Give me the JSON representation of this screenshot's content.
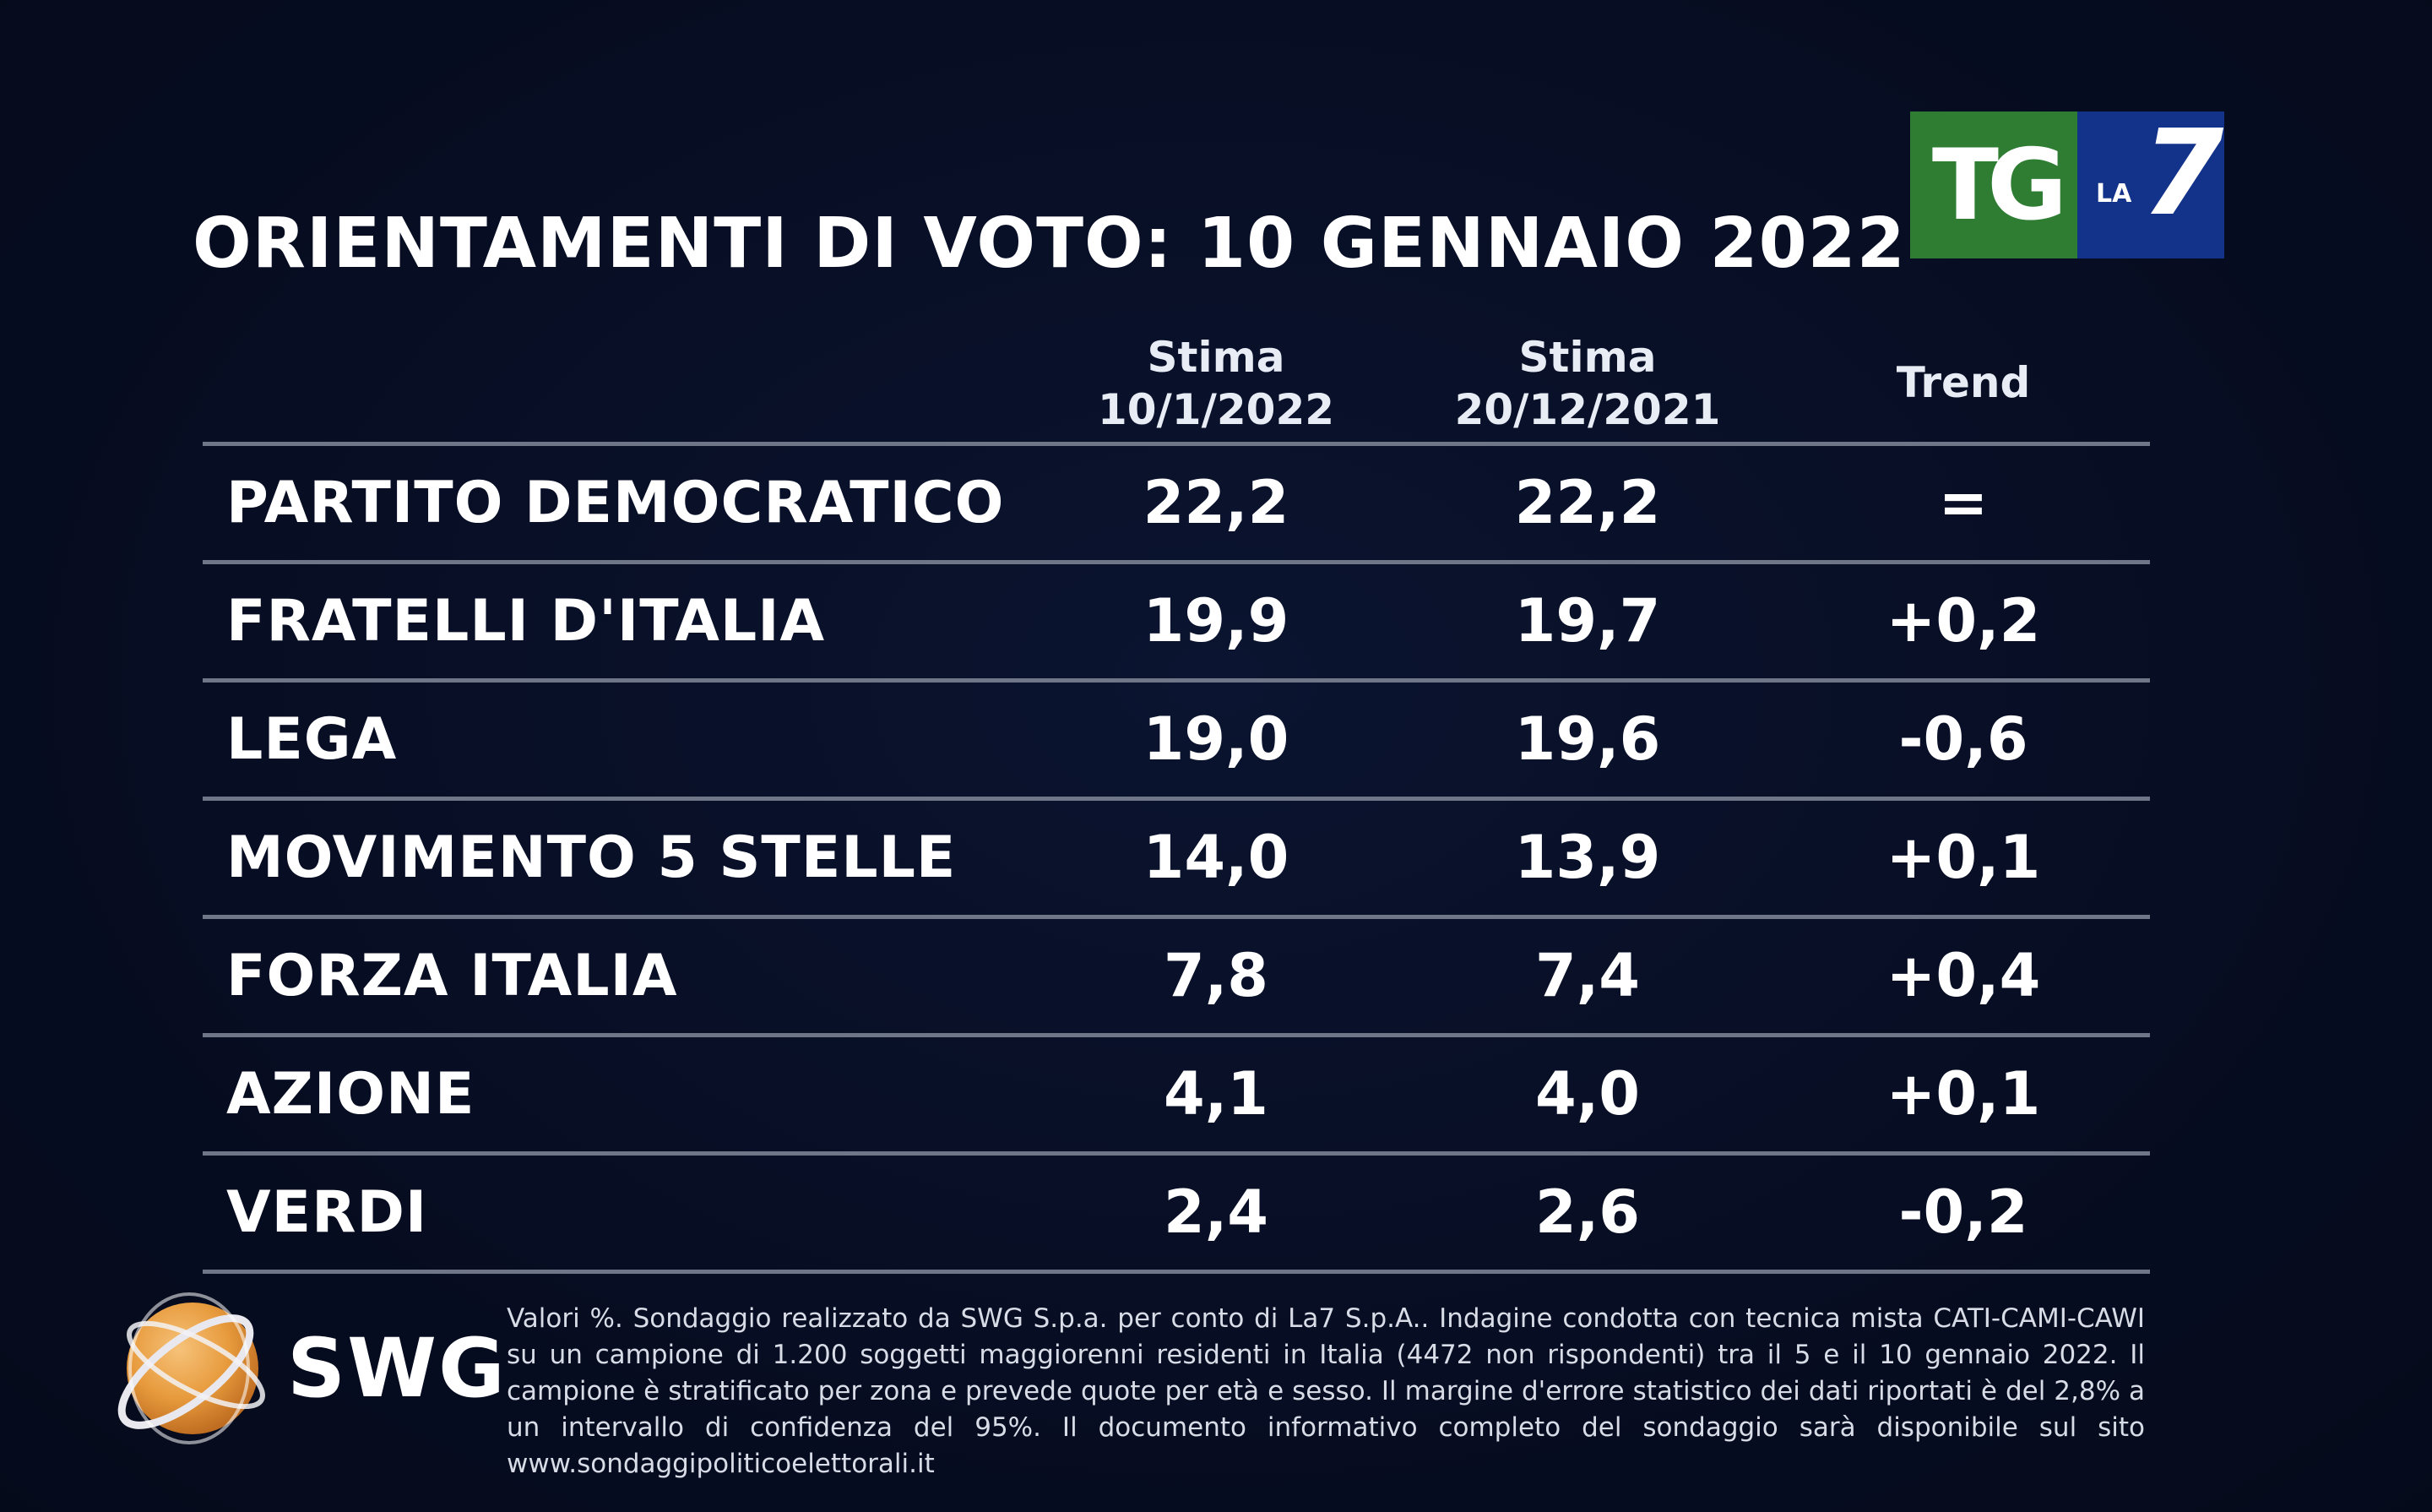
{
  "title": "ORIENTAMENTI DI VOTO: 10 GENNAIO 2022",
  "logo": {
    "tg": "TG",
    "la": "LA",
    "seven": "7",
    "colors": {
      "tg_bg": "#2e7d32",
      "la7_bg": "#13338a"
    }
  },
  "chart_data": {
    "type": "table",
    "title": "ORIENTAMENTI DI VOTO: 10 GENNAIO 2022",
    "columns": [
      {
        "line1": "Stima",
        "line2": "10/1/2022"
      },
      {
        "line1": "Stima",
        "line2": "20/12/2021"
      },
      {
        "line1": "Trend",
        "line2": ""
      }
    ],
    "rows": [
      {
        "party": "PARTITO DEMOCRATICO",
        "stima_10_1_2022": "22,2",
        "stima_20_12_2021": "22,2",
        "trend": "="
      },
      {
        "party": "FRATELLI D'ITALIA",
        "stima_10_1_2022": "19,9",
        "stima_20_12_2021": "19,7",
        "trend": "+0,2"
      },
      {
        "party": "LEGA",
        "stima_10_1_2022": "19,0",
        "stima_20_12_2021": "19,6",
        "trend": "-0,6"
      },
      {
        "party": "MOVIMENTO 5 STELLE",
        "stima_10_1_2022": "14,0",
        "stima_20_12_2021": "13,9",
        "trend": "+0,1"
      },
      {
        "party": "FORZA ITALIA",
        "stima_10_1_2022": "7,8",
        "stima_20_12_2021": "7,4",
        "trend": "+0,4"
      },
      {
        "party": "AZIONE",
        "stima_10_1_2022": "4,1",
        "stima_20_12_2021": "4,0",
        "trend": "+0,1"
      },
      {
        "party": "VERDI",
        "stima_10_1_2022": "2,4",
        "stima_20_12_2021": "2,6",
        "trend": "-0,2"
      }
    ]
  },
  "source": {
    "brand": "SWG",
    "footnote": "Valori %. Sondaggio realizzato da SWG S.p.a. per conto di La7 S.p.A.. Indagine condotta con tecnica mista CATI-CAMI-CAWI su un campione di 1.200 soggetti maggiorenni residenti in Italia (4472 non rispondenti) tra il 5 e il 10 gennaio 2022. Il campione è stratificato per zona e prevede quote per età e sesso. Il margine d'errore statistico dei dati riportati è del 2,8% a un intervallo di confidenza del 95%. Il documento informativo completo del sondaggio sarà disponibile sul sito www.sondaggipoliticoelettorali.it"
  }
}
